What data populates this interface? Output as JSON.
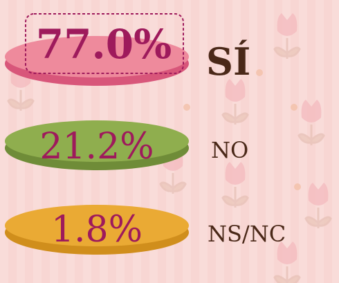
{
  "items": [
    {
      "percent": "77.0%",
      "answer": "SÍ"
    },
    {
      "percent": "21.2%",
      "answer": "NO"
    },
    {
      "percent": "1.8%",
      "answer": "NS/NC"
    }
  ]
}
